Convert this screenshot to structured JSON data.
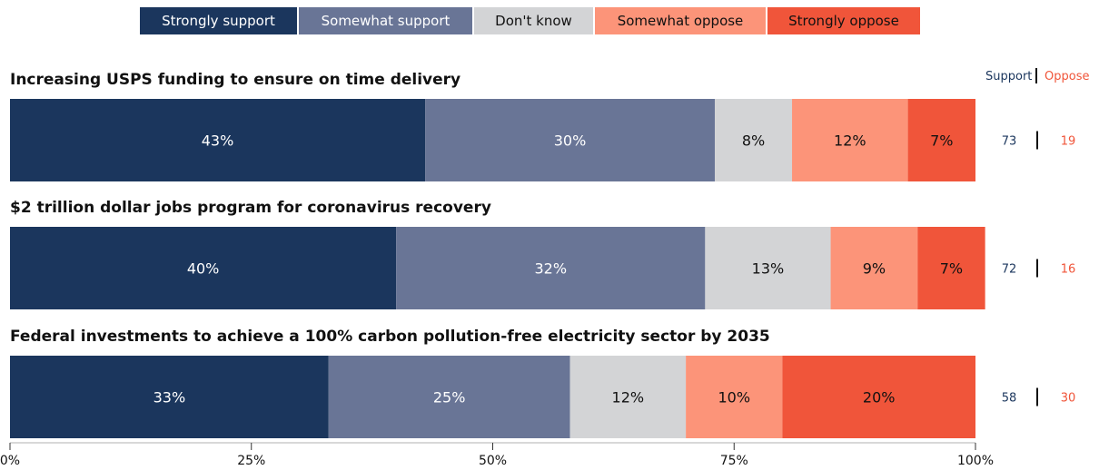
{
  "legend": {
    "items": [
      {
        "label": "Strongly support",
        "color": "#1b365d",
        "text_color": "#ffffff"
      },
      {
        "label": "Somewhat support",
        "color": "#697596",
        "text_color": "#ffffff"
      },
      {
        "label": "Don't know",
        "color": "#d3d4d6",
        "text_color": "#111111"
      },
      {
        "label": "Somewhat oppose",
        "color": "#fc9479",
        "text_color": "#111111"
      },
      {
        "label": "Strongly oppose",
        "color": "#f0553a",
        "text_color": "#111111"
      }
    ]
  },
  "header": {
    "support_label": "Support",
    "oppose_label": "Oppose",
    "support_color": "#1b365d",
    "oppose_color": "#f0553a"
  },
  "chart_data": {
    "type": "bar",
    "orientation": "horizontal",
    "stacked": true,
    "xlim": [
      0,
      100
    ],
    "xticks": [
      "0%",
      "25%",
      "50%",
      "75%",
      "100%"
    ],
    "categories": [
      "Increasing USPS funding to ensure on time delivery",
      "$2 trillion dollar jobs program for coronavirus recovery",
      "Federal investments to achieve a 100% carbon pollution-free electricity sector by 2035"
    ],
    "series": [
      {
        "name": "Strongly support",
        "values": [
          43,
          40,
          33
        ],
        "labels": [
          "43%",
          "40%",
          "33%"
        ]
      },
      {
        "name": "Somewhat support",
        "values": [
          30,
          32,
          25
        ],
        "labels": [
          "30%",
          "32%",
          "25%"
        ]
      },
      {
        "name": "Don't know",
        "values": [
          8,
          13,
          12
        ],
        "labels": [
          "8%",
          "13%",
          "12%"
        ]
      },
      {
        "name": "Somewhat oppose",
        "values": [
          12,
          9,
          10
        ],
        "labels": [
          "12%",
          "9%",
          "10%"
        ]
      },
      {
        "name": "Strongly oppose",
        "values": [
          7,
          7,
          20
        ],
        "labels": [
          "7%",
          "7%",
          "20%"
        ]
      }
    ],
    "totals": {
      "support": [
        "73",
        "72",
        "58"
      ],
      "oppose": [
        "19",
        "16",
        "30"
      ]
    }
  }
}
